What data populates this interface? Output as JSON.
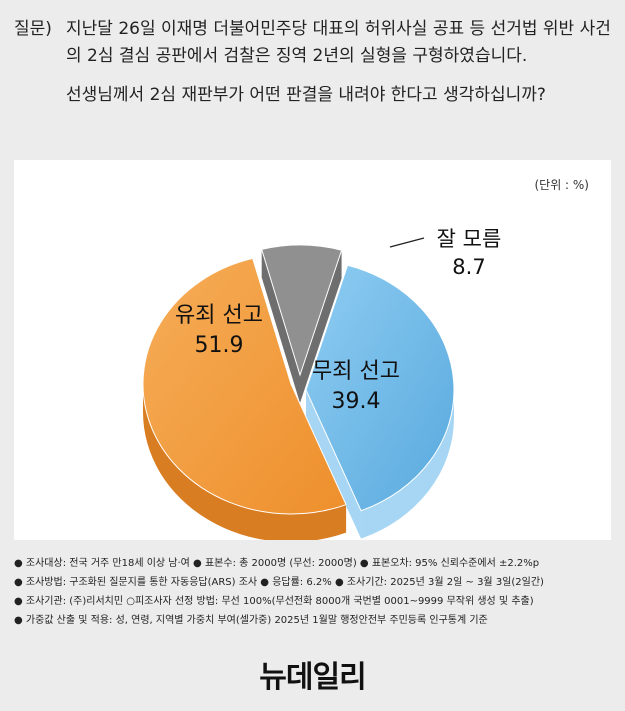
{
  "question": {
    "prefix": "질문)",
    "text": "지난달 26일 이재명 더불어민주당 대표의 허위사실 공표 등 선거법 위반 사건의 2심 결심 공판에서 검찰은 징역 2년의 실형을 구형하였습니다.",
    "sub": "선생님께서 2심 재판부가 어떤 판결을 내려야 한다고 생각하십니까?"
  },
  "unit_label": "(단위 : %)",
  "chart_data": {
    "type": "pie",
    "slices": [
      {
        "label": "잘 모름",
        "value": 8.7,
        "color": "#8f8f8f"
      },
      {
        "label": "무죄 선고",
        "value": 39.4,
        "color": "#6cb8e8"
      },
      {
        "label": "유죄 선고",
        "value": 51.9,
        "color": "#f29a3e"
      }
    ]
  },
  "notes": [
    {
      "parts": [
        "조사대상: 전국 거주 만18세 이상 남·여",
        "표본수: 총 2000명 (무선: 2000명)",
        "표본오차: 95% 신뢰수준에서 ±2.2%p"
      ]
    },
    {
      "parts": [
        "조사방법: 구조화된 질문지를 통한 자동응답(ARS) 조사",
        "응답률: 6.2%",
        "조사기간: 2025년 3월 2일 ~ 3월 3일(2일간)"
      ]
    },
    {
      "parts": [
        "조사기관: (주)리서치민 ○피조사자 선정 방법: 무선 100%(무선전화 8000개 국번별 0001~9999 무작위 생성 및 추출)"
      ]
    },
    {
      "parts": [
        "가중값 산출 및 적용: 성, 연령, 지역별 가중치 부여(셀가중) 2025년 1월말 행정안전부 주민등록 인구통계 기준"
      ]
    }
  ],
  "logo": "뉴데일리"
}
